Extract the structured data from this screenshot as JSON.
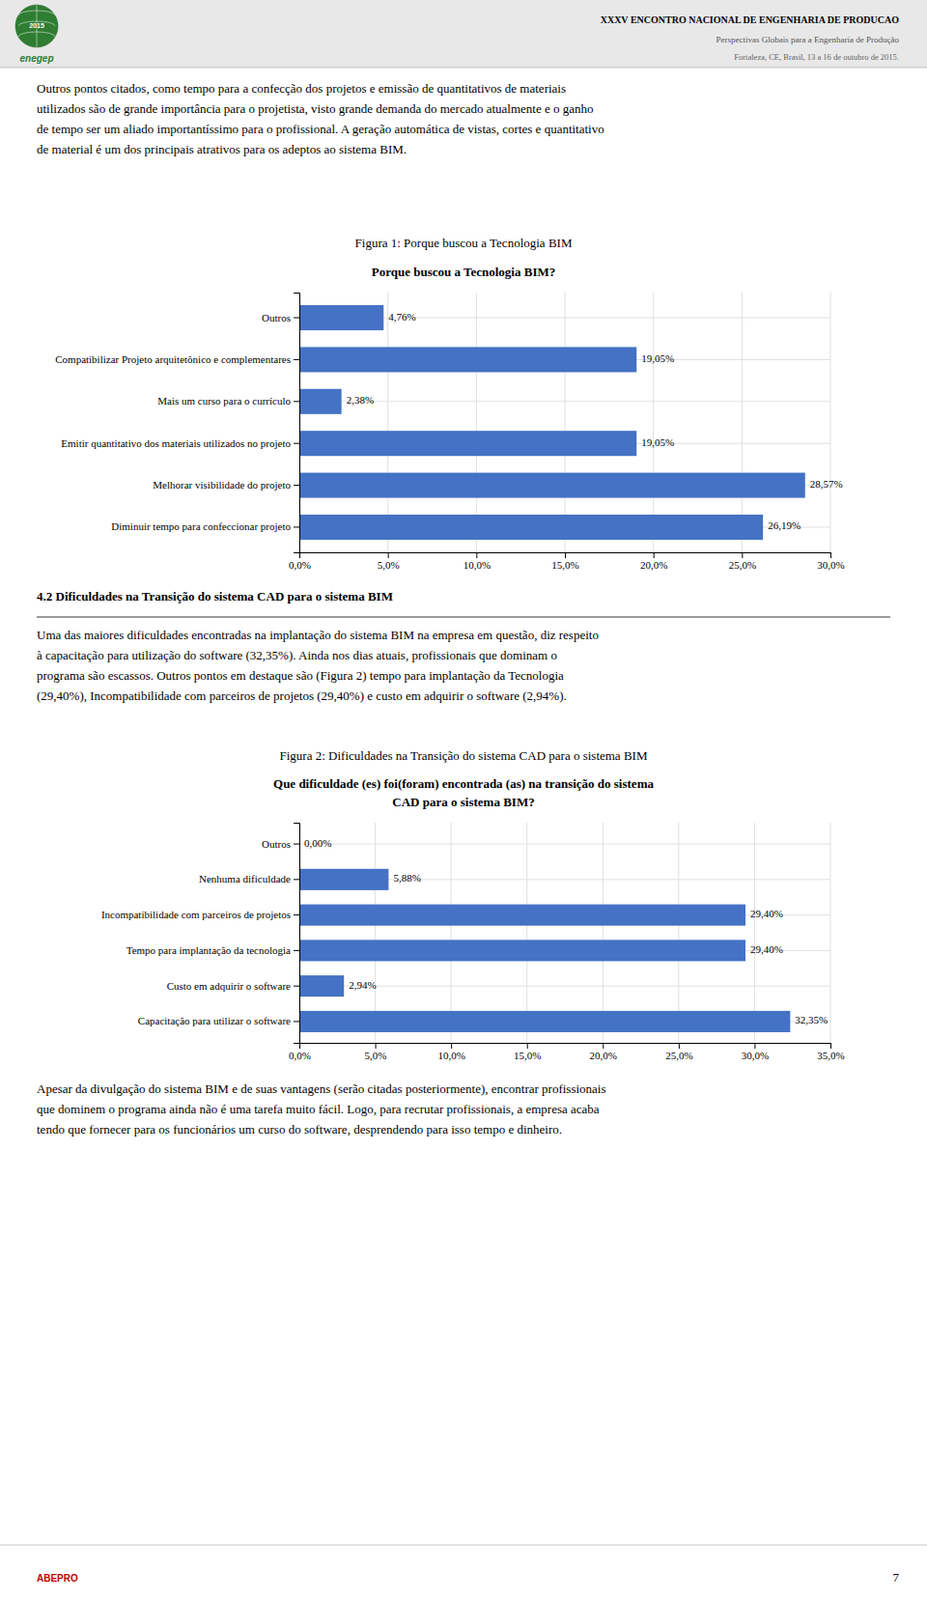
{
  "page": {
    "header_title": "XXXV ENCONTRO NACIONAL DE ENGENHARIA DE PRODUCAO",
    "header_subtitles": [
      "Perspectivas Globais para a Engenharia de Produção",
      "Fortaleza, CE, Brasil, 13 a 16 de outubro de 2015."
    ],
    "logo_texts": [
      "2015",
      "enegep"
    ],
    "para1": [
      "Outros pontos citados, como tempo para a confecção dos projetos e emissão de quantitativos de materiais",
      "utilizados são de grande importância para o projetista, visto grande demanda do mercado atualmente e o ganho",
      "de tempo ser um aliado importantíssimo para o profissional. A geração automática de vistas, cortes e quantitativo",
      "de material é um dos principais atrativos para os adeptos ao sistema BIM."
    ],
    "fig_captions": [
      "Figura 1: Porque buscou a Tecnologia BIM",
      "Figura 2: Dificuldades na Transição do sistema CAD para o sistema BIM"
    ],
    "section_title": "4.2 Dificuldades na Transição do sistema CAD para o sistema BIM",
    "para2": [
      "Uma das maiores dificuldades encontradas na implantação do sistema BIM na empresa em questão, diz respeito",
      "à capacitação para utilização do software (32,35%). Ainda nos dias atuais, profissionais que dominam o",
      "programa são escassos. Outros pontos em destaque são (Figura 2) tempo para implantação da Tecnologia",
      "(29,40%), Incompatibilidade com parceiros de projetos (29,40%) e custo em adquirir o software (2,94%)."
    ],
    "para3": [
      "Apesar da divulgação do sistema BIM e de suas vantagens (serão citadas posteriormente), encontrar profissionais",
      "que dominem o programa ainda não é uma tarefa muito fácil. Logo, para recrutar profissionais, a empresa acaba",
      "tendo que fornecer para os funcionários um curso do software, desprendendo para isso tempo e dinheiro."
    ],
    "footer_logo": "ABEPRO",
    "footer_page": "7"
  },
  "chart_data": [
    {
      "type": "bar",
      "orientation": "horizontal",
      "title": "Porque buscou a Tecnologia BIM?",
      "categories": [
        "Outros",
        "Compatibilizar Projeto arquitetônico e complementares",
        "Mais um curso para o currículo",
        "Emitir quantitativo dos materiais utilizados no projeto",
        "Melhorar visibilidade  do projeto",
        "Diminuir tempo para confeccionar projeto"
      ],
      "values": [
        4.76,
        19.05,
        2.38,
        19.05,
        28.57,
        26.19
      ],
      "value_labels": [
        "4,76%",
        "19,05%",
        "2,38%",
        "19,05%",
        "28,57%",
        "26,19%"
      ],
      "data_labels": true,
      "color": "#4472c4",
      "xlim": [
        0,
        30
      ],
      "xticks": [
        {
          "value": 0,
          "label": "0,0%"
        },
        {
          "value": 5,
          "label": "5,0%"
        },
        {
          "value": 10,
          "label": "10,0%"
        },
        {
          "value": 15,
          "label": "15,0%"
        },
        {
          "value": 20,
          "label": "20,0%"
        },
        {
          "value": 25,
          "label": "25,0%"
        },
        {
          "value": 30,
          "label": "30,0%"
        }
      ],
      "grid": true
    },
    {
      "type": "bar",
      "orientation": "horizontal",
      "title": [
        "Que dificuldade (es) foi(foram) encontrada (as) na transição do sistema",
        "CAD para o sistema BIM?"
      ],
      "categories": [
        "Outros",
        "Nenhuma dificuldade",
        "Incompatibilidade com parceiros de projetos",
        "Tempo para implantação da tecnologia",
        "Custo em adquirir o software",
        "Capacitação para utilizar o software"
      ],
      "values": [
        0.0,
        5.88,
        29.4,
        29.4,
        2.94,
        32.35
      ],
      "value_labels": [
        "0,00%",
        "5,88%",
        "29,40%",
        "29,40%",
        "2,94%",
        "32,35%"
      ],
      "data_labels": true,
      "color": "#4472c4",
      "xlim": [
        0,
        35
      ],
      "xticks": [
        {
          "value": 0,
          "label": "0,0%"
        },
        {
          "value": 5,
          "label": "5,0%"
        },
        {
          "value": 10,
          "label": "10,0%"
        },
        {
          "value": 15,
          "label": "15,0%"
        },
        {
          "value": 20,
          "label": "20,0%"
        },
        {
          "value": 25,
          "label": "25,0%"
        },
        {
          "value": 30,
          "label": "30,0%"
        },
        {
          "value": 35,
          "label": "35,0%"
        }
      ],
      "grid": true
    }
  ]
}
